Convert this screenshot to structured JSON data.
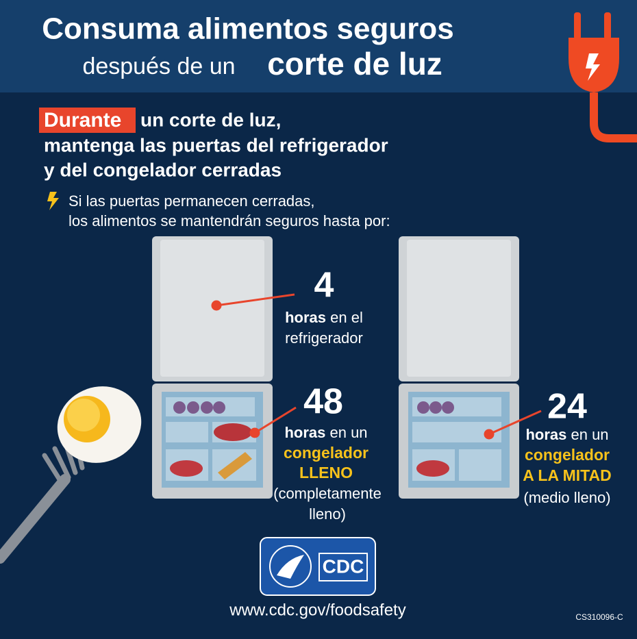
{
  "header": {
    "title_line1": "Consuma alimentos seguros",
    "title_line2a": "después de un",
    "title_line2b": "corte de luz"
  },
  "headline": {
    "highlight": "Durante",
    "line1_rest": "un corte de luz,",
    "line2": "mantenga las puertas del refrigerador",
    "line3": "y del congelador cerradas"
  },
  "note": {
    "line1": "Si las puertas permanecen cerradas,",
    "line2": "los alimentos se mantendrán seguros hasta por:"
  },
  "callouts": [
    {
      "number": 4,
      "bold": "horas",
      "rest": "en el",
      "line2": "refrigerador"
    },
    {
      "number": 48,
      "bold": "horas",
      "rest": "en un",
      "line2": "congelador",
      "line3": "LLENO",
      "line4": "(completamente",
      "line5": "lleno)"
    },
    {
      "number": 24,
      "bold": "horas",
      "rest": "en un",
      "line2": "congelador",
      "line3": "A LA MITAD",
      "line4": "(medio lleno)"
    }
  ],
  "logo": {
    "text": "CDC"
  },
  "footer": {
    "url": "www.cdc.gov/foodsafety",
    "code": "CS310096-C"
  }
}
